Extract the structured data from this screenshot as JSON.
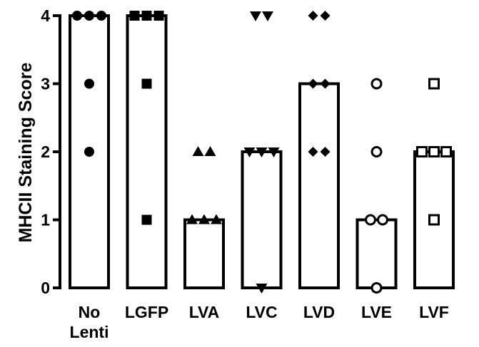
{
  "chart_data": {
    "type": "bar",
    "ylabel": "MHCII Staining Score",
    "xlabel": "",
    "ylim": [
      0,
      4
    ],
    "yticks": [
      0,
      1,
      2,
      3,
      4
    ],
    "grid": false,
    "legend": "none",
    "categories": [
      {
        "label_lines": [
          "No",
          "Lenti"
        ],
        "marker": "circle-filled"
      },
      {
        "label_lines": [
          "LGFP"
        ],
        "marker": "square-filled"
      },
      {
        "label_lines": [
          "LVA"
        ],
        "marker": "triangle-up-filled"
      },
      {
        "label_lines": [
          "LVC"
        ],
        "marker": "triangle-down-filled"
      },
      {
        "label_lines": [
          "LVD"
        ],
        "marker": "diamond-filled"
      },
      {
        "label_lines": [
          "LVE"
        ],
        "marker": "circle-open"
      },
      {
        "label_lines": [
          "LVF"
        ],
        "marker": "square-open"
      }
    ],
    "values": [
      4,
      4,
      1,
      2,
      3,
      1,
      2
    ],
    "points": [
      [
        4,
        4,
        4,
        3,
        2
      ],
      [
        4,
        4,
        4,
        3,
        1
      ],
      [
        2,
        2,
        1,
        1,
        1
      ],
      [
        4,
        4,
        2,
        2,
        2,
        0
      ],
      [
        4,
        4,
        3,
        3,
        2,
        2
      ],
      [
        3,
        2,
        1,
        1,
        0
      ],
      [
        3,
        2,
        2,
        2,
        1
      ]
    ],
    "colors": {
      "bar_fill": "#ffffff",
      "stroke": "#000000"
    }
  }
}
